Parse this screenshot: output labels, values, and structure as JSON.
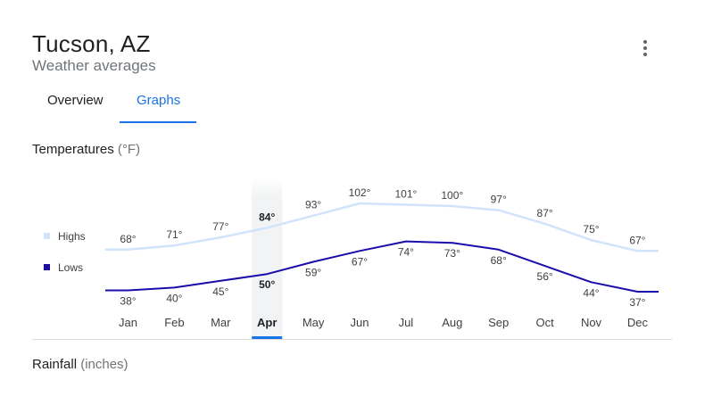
{
  "header": {
    "title": "Tucson, AZ",
    "subtitle": "Weather averages",
    "menu_icon": "more-vert-icon"
  },
  "tabs": [
    {
      "label": "Overview",
      "selected": false
    },
    {
      "label": "Graphs",
      "selected": true
    }
  ],
  "temperatures": {
    "title": "Temperatures",
    "unit": "(°F)"
  },
  "rainfall": {
    "title": "Rainfall",
    "unit": "(inches)"
  },
  "colors": {
    "highs": "#d2e3fc",
    "lows": "#1a0dab",
    "accent": "#1a73e8"
  },
  "chart_data": {
    "type": "line",
    "categories": [
      "Jan",
      "Feb",
      "Mar",
      "Apr",
      "May",
      "Jun",
      "Jul",
      "Aug",
      "Sep",
      "Oct",
      "Nov",
      "Dec"
    ],
    "selected": "Apr",
    "series": [
      {
        "name": "Highs",
        "values": [
          68,
          71,
          77,
          84,
          93,
          102,
          101,
          100,
          97,
          87,
          75,
          67
        ]
      },
      {
        "name": "Lows",
        "values": [
          38,
          40,
          45,
          50,
          59,
          67,
          74,
          73,
          68,
          56,
          44,
          37
        ]
      }
    ],
    "value_suffix": "°",
    "legend": "left"
  }
}
